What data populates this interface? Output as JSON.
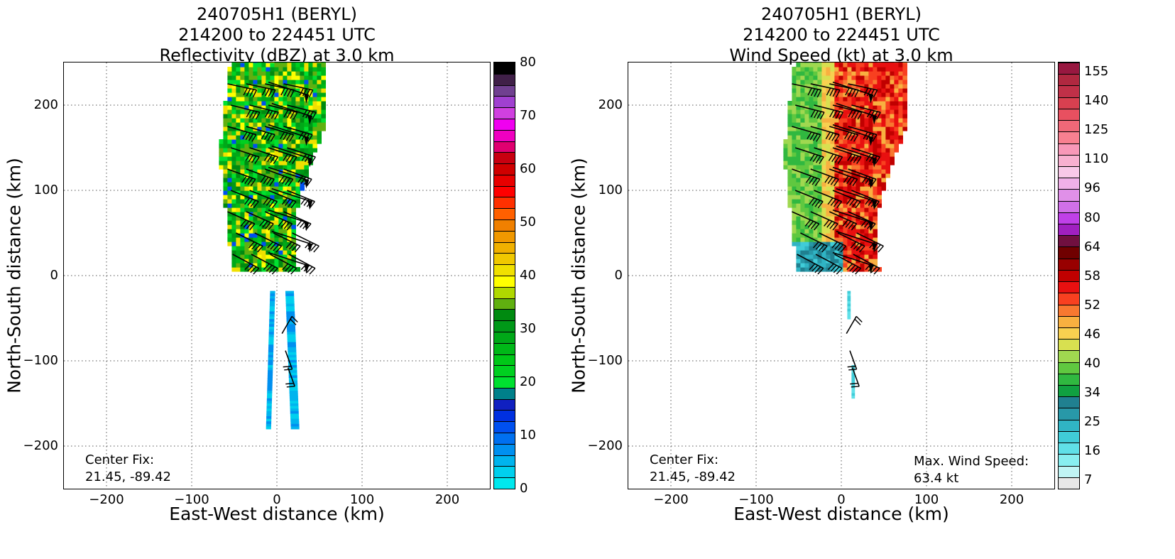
{
  "panels": [
    {
      "id": "reflectivity",
      "title_lines": [
        "240705H1 (BERYL)",
        "214200 to 224451 UTC",
        "Reflectivity (dBZ) at 3.0 km"
      ],
      "xlabel": "East-West distance (km)",
      "ylabel": "North-South distance (km)",
      "x_ticks": [
        "−200",
        "−100",
        "0",
        "100",
        "200"
      ],
      "y_ticks": [
        "200",
        "100",
        "0",
        "−100",
        "−200"
      ],
      "center_fix_label": "Center Fix:",
      "center_fix_value": "21.45, -89.42",
      "max_wind_label": "",
      "max_wind_value": "",
      "colorbar_ticks": [
        "80",
        "70",
        "60",
        "50",
        "40",
        "30",
        "20",
        "10",
        "0"
      ]
    },
    {
      "id": "wind-speed",
      "title_lines": [
        "240705H1 (BERYL)",
        "214200 to 224451 UTC",
        "Wind Speed (kt) at 3.0 km"
      ],
      "xlabel": "East-West distance (km)",
      "ylabel": "North-South distance (km)",
      "x_ticks": [
        "−200",
        "−100",
        "0",
        "100",
        "200"
      ],
      "y_ticks": [
        "200",
        "100",
        "0",
        "−100",
        "−200"
      ],
      "center_fix_label": "Center Fix:",
      "center_fix_value": "21.45, -89.42",
      "max_wind_label": "Max. Wind Speed:",
      "max_wind_value": "63.4 kt",
      "colorbar_ticks": [
        "155",
        "140",
        "125",
        "110",
        "96",
        "80",
        "64",
        "58",
        "52",
        "46",
        "40",
        "34",
        "25",
        "16",
        "7"
      ]
    }
  ],
  "chart_data": [
    {
      "type": "heatmap",
      "title": "240705H1 (BERYL) 214200 to 224451 UTC Reflectivity (dBZ) at 3.0 km",
      "xlabel": "East-West distance (km)",
      "ylabel": "North-South distance (km)",
      "xlim": [
        -250,
        250
      ],
      "ylim": [
        -250,
        250
      ],
      "grid": true,
      "x_ticks": [
        -200,
        -100,
        0,
        100,
        200
      ],
      "y_ticks": [
        -200,
        -100,
        0,
        100,
        200
      ],
      "colorbar": {
        "label_ticks": [
          0,
          10,
          20,
          30,
          40,
          50,
          60,
          70,
          80
        ],
        "levels": [
          0,
          2.5,
          5,
          7.5,
          10,
          12.5,
          15,
          17.5,
          20,
          22.5,
          25,
          27.5,
          30,
          32.5,
          35,
          37.5,
          40,
          42.5,
          45,
          47.5,
          50,
          52.5,
          55,
          57.5,
          60,
          62.5,
          65,
          67.5,
          70,
          72.5,
          75,
          77.5,
          80
        ],
        "colors": [
          "#00e8ee",
          "#00d0ee",
          "#00b4ee",
          "#0090f0",
          "#0070f0",
          "#0050f0",
          "#0030e0",
          "#1020c0",
          "#00808a",
          "#00e030",
          "#00d020",
          "#00c818",
          "#00b818",
          "#00a818",
          "#009818",
          "#008a10",
          "#60b010",
          "#b0d800",
          "#ffff00",
          "#f0e000",
          "#f0c800",
          "#f0b000",
          "#f09800",
          "#f08000",
          "#ff6000",
          "#ff3000",
          "#ff0000",
          "#e80000",
          "#d00000",
          "#c80010",
          "#e00070",
          "#f000c0",
          "#f000f0",
          "#d040e0",
          "#a040d0",
          "#704090",
          "#402048",
          "#000000"
        ]
      },
      "regions": [
        {
          "name": "northern rainband",
          "x_range": [
            -68,
            55
          ],
          "y_range": [
            5,
            250
          ],
          "dbz_range": [
            18,
            42
          ]
        },
        {
          "name": "southern radar strip",
          "x_range": [
            -20,
            25
          ],
          "y_range": [
            -178,
            -18
          ],
          "dbz_range": [
            3,
            12
          ]
        }
      ],
      "barb_x": [
        -40,
        -28,
        -15,
        -3,
        10,
        22,
        35,
        -45,
        -32,
        -20,
        -8,
        5,
        18,
        30,
        45
      ],
      "barb_y": [
        225,
        200,
        175,
        150,
        125,
        100,
        75,
        50,
        25,
        -70,
        -90,
        -110
      ],
      "center_fix": "21.45, -89.42"
    },
    {
      "type": "heatmap",
      "title": "240705H1 (BERYL) 214200 to 224451 UTC Wind Speed (kt) at 3.0 km",
      "xlabel": "East-West distance (km)",
      "ylabel": "North-South distance (km)",
      "xlim": [
        -250,
        250
      ],
      "ylim": [
        -250,
        250
      ],
      "grid": true,
      "x_ticks": [
        -200,
        -100,
        0,
        100,
        200
      ],
      "y_ticks": [
        -200,
        -100,
        0,
        100,
        200
      ],
      "colorbar": {
        "label_ticks": [
          7,
          16,
          25,
          34,
          40,
          46,
          52,
          58,
          64,
          80,
          96,
          110,
          125,
          140,
          155
        ],
        "colors": [
          "#e8e8e8",
          "#c0f4f4",
          "#88eef0",
          "#60e0e8",
          "#40ccd8",
          "#30b4c4",
          "#2898a8",
          "#208090",
          "#10a040",
          "#30b840",
          "#60c840",
          "#a0d850",
          "#d8e050",
          "#f8d050",
          "#f8b040",
          "#f87830",
          "#f84020",
          "#e81010",
          "#c00000",
          "#980000",
          "#700000",
          "#701040",
          "#a020c0",
          "#c040e8",
          "#d070e8",
          "#e090e8",
          "#f0b0e8",
          "#f8c8e8",
          "#f8b0d0",
          "#f898b8",
          "#f88090",
          "#f06878",
          "#e85060",
          "#d84050",
          "#c03048",
          "#b02840",
          "#981840"
        ]
      },
      "regions": [
        {
          "name": "northern rainband",
          "x_range": [
            -68,
            75
          ],
          "y_range": [
            5,
            250
          ],
          "wind_kt_range": [
            34,
            60
          ]
        },
        {
          "name": "inner core arc",
          "x_range": [
            -50,
            0
          ],
          "y_range": [
            5,
            40
          ],
          "wind_kt_range": [
            16,
            30
          ]
        },
        {
          "name": "southern radar strip",
          "x_range": [
            5,
            15
          ],
          "y_range": [
            -145,
            -18
          ],
          "wind_kt_range": [
            16,
            25
          ]
        }
      ],
      "barb_x": [
        -40,
        -28,
        -15,
        -3,
        10,
        22,
        35,
        -45,
        -32,
        -20,
        -8,
        5,
        18,
        30,
        45
      ],
      "barb_y": [
        225,
        200,
        175,
        150,
        125,
        100,
        75,
        50,
        25,
        -70,
        -90,
        -110
      ],
      "center_fix": "21.45, -89.42",
      "max_wind_speed": "63.4 kt"
    }
  ]
}
